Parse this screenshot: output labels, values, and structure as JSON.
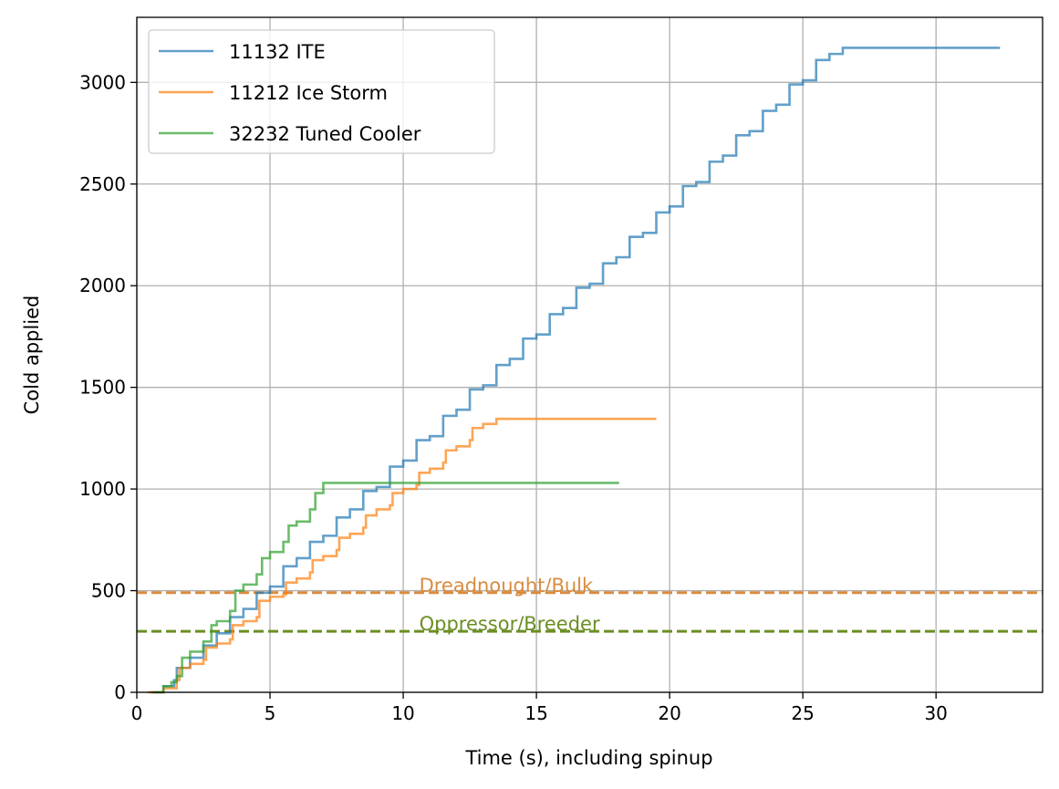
{
  "chart_data": {
    "type": "line",
    "xlabel": "Time (s), including spinup",
    "ylabel": "Cold applied",
    "xlim": [
      0,
      34
    ],
    "ylim": [
      0,
      3320
    ],
    "x_ticks": [
      0,
      5,
      10,
      15,
      20,
      25,
      30
    ],
    "y_ticks": [
      0,
      500,
      1000,
      1500,
      2000,
      2500,
      3000
    ],
    "grid": true,
    "legend_position": "upper-left",
    "series": [
      {
        "name": "11132 ITE",
        "color": "#1f77b4",
        "step": true,
        "points": [
          [
            0.5,
            0
          ],
          [
            1,
            30
          ],
          [
            1.4,
            60
          ],
          [
            1.5,
            120
          ],
          [
            2,
            170
          ],
          [
            2.5,
            230
          ],
          [
            3,
            290
          ],
          [
            3.5,
            370
          ],
          [
            4,
            410
          ],
          [
            4.5,
            490
          ],
          [
            5,
            520
          ],
          [
            5.5,
            620
          ],
          [
            6,
            660
          ],
          [
            6.5,
            740
          ],
          [
            7,
            770
          ],
          [
            7.5,
            860
          ],
          [
            8,
            900
          ],
          [
            8.5,
            990
          ],
          [
            9,
            1010
          ],
          [
            9.5,
            1110
          ],
          [
            10,
            1140
          ],
          [
            10.5,
            1240
          ],
          [
            11,
            1260
          ],
          [
            11.5,
            1360
          ],
          [
            12,
            1390
          ],
          [
            12.5,
            1490
          ],
          [
            13,
            1510
          ],
          [
            13.5,
            1610
          ],
          [
            14,
            1640
          ],
          [
            14.5,
            1740
          ],
          [
            15,
            1760
          ],
          [
            15.5,
            1860
          ],
          [
            16,
            1890
          ],
          [
            16.5,
            1990
          ],
          [
            17,
            2010
          ],
          [
            17.5,
            2110
          ],
          [
            18,
            2140
          ],
          [
            18.5,
            2240
          ],
          [
            19,
            2260
          ],
          [
            19.5,
            2360
          ],
          [
            20,
            2390
          ],
          [
            20.5,
            2490
          ],
          [
            21,
            2510
          ],
          [
            21.5,
            2610
          ],
          [
            22,
            2640
          ],
          [
            22.5,
            2740
          ],
          [
            23,
            2760
          ],
          [
            23.5,
            2860
          ],
          [
            24,
            2890
          ],
          [
            24.5,
            2990
          ],
          [
            25,
            3010
          ],
          [
            25.5,
            3110
          ],
          [
            26,
            3140
          ],
          [
            26.5,
            3170
          ],
          [
            32.4,
            3170
          ]
        ]
      },
      {
        "name": "11212 Ice Storm",
        "color": "#ff7f0e",
        "step": true,
        "points": [
          [
            0.4,
            0
          ],
          [
            1,
            20
          ],
          [
            1.5,
            60
          ],
          [
            1.6,
            120
          ],
          [
            2,
            140
          ],
          [
            2.5,
            160
          ],
          [
            2.6,
            220
          ],
          [
            3,
            240
          ],
          [
            3.5,
            260
          ],
          [
            3.6,
            330
          ],
          [
            4,
            350
          ],
          [
            4.5,
            370
          ],
          [
            4.6,
            450
          ],
          [
            5,
            470
          ],
          [
            5.5,
            480
          ],
          [
            5.6,
            540
          ],
          [
            6,
            560
          ],
          [
            6.5,
            590
          ],
          [
            6.6,
            650
          ],
          [
            7,
            670
          ],
          [
            7.5,
            700
          ],
          [
            7.6,
            760
          ],
          [
            8,
            780
          ],
          [
            8.5,
            810
          ],
          [
            8.6,
            870
          ],
          [
            9,
            900
          ],
          [
            9.5,
            920
          ],
          [
            9.6,
            980
          ],
          [
            10,
            1000
          ],
          [
            10.5,
            1020
          ],
          [
            10.6,
            1080
          ],
          [
            11,
            1100
          ],
          [
            11.5,
            1130
          ],
          [
            11.6,
            1190
          ],
          [
            12,
            1210
          ],
          [
            12.5,
            1240
          ],
          [
            12.6,
            1300
          ],
          [
            13,
            1320
          ],
          [
            13.5,
            1345
          ],
          [
            19.5,
            1345
          ]
        ]
      },
      {
        "name": "32232 Tuned Cooler",
        "color": "#2ca02c",
        "step": true,
        "points": [
          [
            0.6,
            0
          ],
          [
            1,
            30
          ],
          [
            1.3,
            50
          ],
          [
            1.5,
            80
          ],
          [
            1.7,
            170
          ],
          [
            2,
            200
          ],
          [
            2.5,
            250
          ],
          [
            2.8,
            330
          ],
          [
            3,
            350
          ],
          [
            3.5,
            400
          ],
          [
            3.7,
            500
          ],
          [
            4,
            530
          ],
          [
            4.5,
            580
          ],
          [
            4.7,
            660
          ],
          [
            5,
            690
          ],
          [
            5.5,
            740
          ],
          [
            5.7,
            820
          ],
          [
            6,
            840
          ],
          [
            6.5,
            900
          ],
          [
            6.7,
            980
          ],
          [
            7,
            1030
          ],
          [
            18.1,
            1030
          ]
        ]
      }
    ],
    "reference_lines": [
      {
        "y": 490,
        "label": "Dreadnought/Bulk",
        "color": "#d98c3f",
        "style": "dashed",
        "label_x": 10.6
      },
      {
        "y": 300,
        "label": "Oppressor/Breeder",
        "color": "#6b8e23",
        "style": "dashed",
        "label_x": 10.6
      }
    ]
  }
}
